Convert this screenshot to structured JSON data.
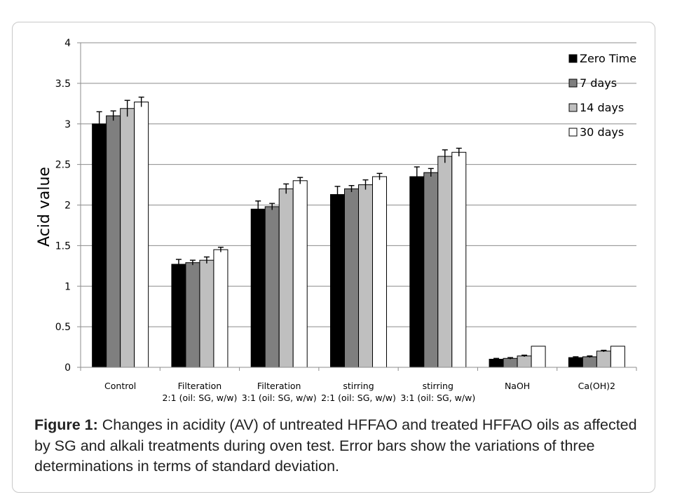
{
  "chart_data": {
    "type": "bar",
    "ylabel": "Acid value",
    "xlabel": "",
    "ylim": [
      0,
      4
    ],
    "yticks": [
      "0",
      "0.5",
      "1",
      "1.5",
      "2",
      "2.5",
      "3",
      "3.5",
      "4"
    ],
    "grid": "horizontal",
    "legend_position": "top-right",
    "categories": [
      [
        "Control"
      ],
      [
        "Filteration",
        "2:1 (oil: SG, w/w)"
      ],
      [
        "Filteration",
        "3:1 (oil: SG, w/w)"
      ],
      [
        "stirring",
        "2:1 (oil: SG, w/w)"
      ],
      [
        "stirring",
        "3:1 (oil: SG, w/w)"
      ],
      [
        "NaOH"
      ],
      [
        "Ca(OH)2"
      ]
    ],
    "series": [
      {
        "name": "Zero Time",
        "color": "#000000",
        "values": [
          3.0,
          1.27,
          1.95,
          2.13,
          2.35,
          0.1,
          0.12
        ],
        "errors": [
          0.15,
          0.06,
          0.1,
          0.1,
          0.12,
          0.01,
          0.01
        ]
      },
      {
        "name": "7 days",
        "color": "#7f7f7f",
        "values": [
          3.1,
          1.29,
          1.98,
          2.2,
          2.4,
          0.11,
          0.13
        ],
        "errors": [
          0.06,
          0.03,
          0.04,
          0.04,
          0.05,
          0.01,
          0.01
        ]
      },
      {
        "name": "14 days",
        "color": "#bfbfbf",
        "values": [
          3.19,
          1.32,
          2.2,
          2.25,
          2.6,
          0.14,
          0.2
        ],
        "errors": [
          0.1,
          0.04,
          0.06,
          0.06,
          0.08,
          0.01,
          0.01
        ]
      },
      {
        "name": "30 days",
        "color": "#ffffff",
        "values": [
          3.27,
          1.45,
          2.3,
          2.35,
          2.65,
          0.26,
          0.26
        ],
        "errors": [
          0.06,
          0.03,
          0.04,
          0.04,
          0.05,
          0.0,
          0.0
        ]
      }
    ]
  },
  "caption": {
    "label": "Figure 1:",
    "text": " Changes in acidity (AV) of untreated HFFAO and treated HFFAO oils as affected by SG and alkali treatments during oven test. Error bars show the variations of three determinations in terms of standard deviation."
  }
}
